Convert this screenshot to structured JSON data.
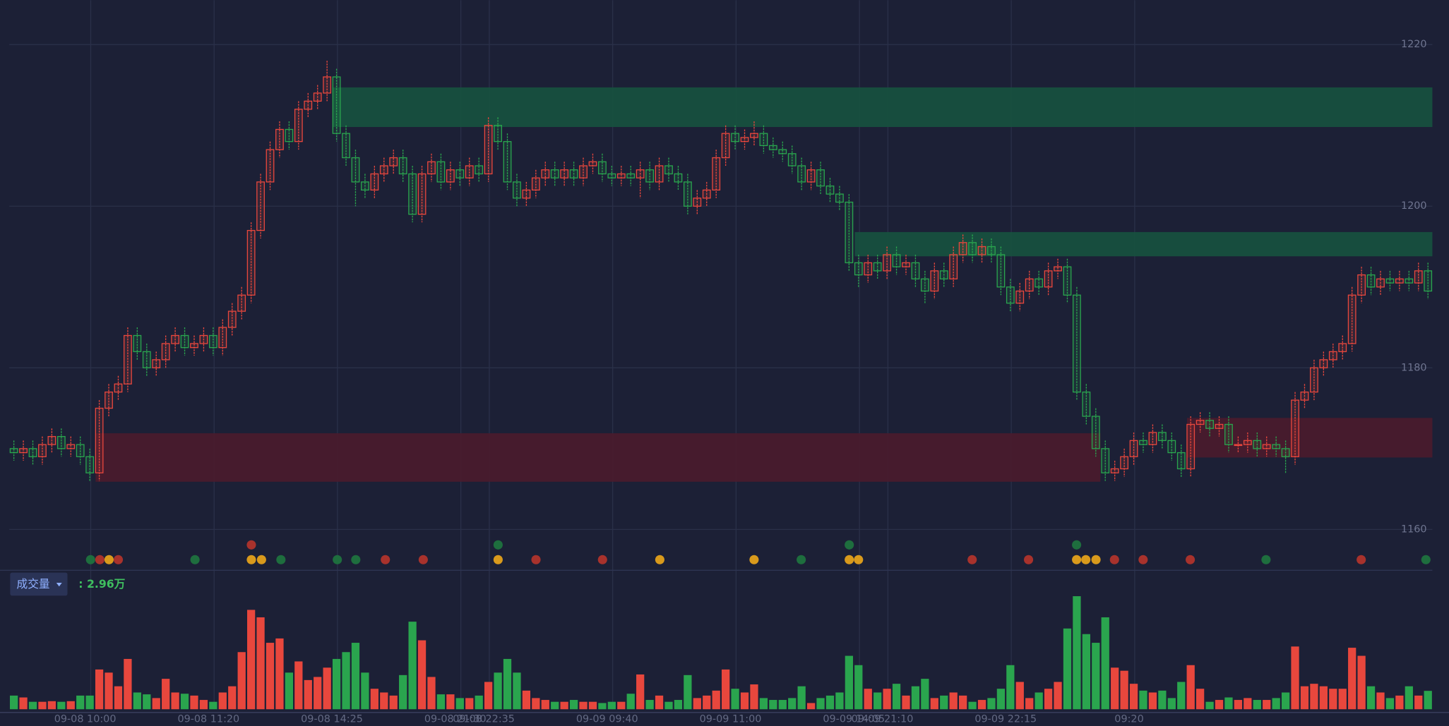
{
  "chart_data": {
    "type": "candlestick",
    "ylim": [
      1155,
      1225.5
    ],
    "yticks": [
      1160,
      1180,
      1200,
      1220
    ],
    "grid": true,
    "up_color": "#e8473d",
    "down_color": "#2aa54e",
    "categories": [
      null,
      null,
      null,
      null,
      null,
      null,
      null,
      null,
      "09-08 10:00",
      null,
      null,
      null,
      null,
      null,
      null,
      null,
      null,
      null,
      null,
      null,
      null,
      "09-08 11:20",
      null,
      null,
      null,
      null,
      null,
      null,
      null,
      null,
      null,
      null,
      null,
      null,
      "09-08 14:25",
      null,
      null,
      null,
      null,
      null,
      null,
      null,
      null,
      null,
      null,
      null,
      null,
      "09-08 21:30",
      null,
      null,
      "09-08 22:35",
      null,
      null,
      null,
      null,
      null,
      null,
      null,
      null,
      null,
      null,
      null,
      null,
      "09-09 09:40",
      null,
      null,
      null,
      null,
      null,
      null,
      null,
      null,
      null,
      null,
      null,
      null,
      "09-09 11:00",
      null,
      null,
      null,
      null,
      null,
      null,
      null,
      null,
      null,
      null,
      null,
      null,
      "09-09 14:05",
      null,
      null,
      "09-09 21:10",
      null,
      null,
      null,
      null,
      null,
      null,
      null,
      null,
      null,
      null,
      null,
      null,
      "09-09 22:15",
      null,
      null,
      null,
      null,
      null,
      null,
      null,
      null,
      null,
      null,
      null,
      null,
      "09:20",
      null,
      null,
      null,
      null,
      null,
      null,
      null,
      null,
      null,
      null,
      null,
      null,
      null,
      null,
      null,
      null,
      null,
      null,
      null,
      null,
      null,
      null,
      null,
      null,
      null,
      null,
      null,
      null,
      null,
      null,
      null
    ],
    "candles": [
      [
        1170,
        1171,
        1168.5,
        1169.5
      ],
      [
        1169.5,
        1171,
        1168.5,
        1170
      ],
      [
        1170,
        1171,
        1168,
        1169
      ],
      [
        1169,
        1171.5,
        1168,
        1170.5
      ],
      [
        1170.5,
        1172.5,
        1169.5,
        1171.5
      ],
      [
        1171.5,
        1172.5,
        1169,
        1170
      ],
      [
        1170,
        1171.5,
        1169,
        1170.5
      ],
      [
        1170.5,
        1171.5,
        1168,
        1169
      ],
      [
        1169,
        1170,
        1166,
        1167
      ],
      [
        1167,
        1176,
        1166,
        1175
      ],
      [
        1175,
        1178,
        1174,
        1177
      ],
      [
        1177,
        1179,
        1176,
        1178
      ],
      [
        1178,
        1185,
        1177,
        1184
      ],
      [
        1184,
        1185,
        1181,
        1182
      ],
      [
        1182,
        1183,
        1179,
        1180
      ],
      [
        1180,
        1182,
        1179,
        1181
      ],
      [
        1181,
        1184,
        1180,
        1183
      ],
      [
        1183,
        1185,
        1182,
        1184
      ],
      [
        1184,
        1185,
        1181.5,
        1182.5
      ],
      [
        1182.5,
        1184,
        1181.5,
        1183
      ],
      [
        1183,
        1185,
        1182,
        1184
      ],
      [
        1184,
        1185,
        1181.5,
        1182.5
      ],
      [
        1182.5,
        1186,
        1181.5,
        1185
      ],
      [
        1185,
        1188,
        1184,
        1187
      ],
      [
        1187,
        1190,
        1186,
        1189
      ],
      [
        1189,
        1198,
        1188,
        1197
      ],
      [
        1197,
        1204,
        1196,
        1203
      ],
      [
        1203,
        1208,
        1202,
        1207
      ],
      [
        1207,
        1210.5,
        1206,
        1209.5
      ],
      [
        1209.5,
        1210.5,
        1207,
        1208
      ],
      [
        1208,
        1213,
        1207,
        1212
      ],
      [
        1212,
        1214,
        1211,
        1213
      ],
      [
        1213,
        1215,
        1212,
        1214
      ],
      [
        1214,
        1218,
        1213,
        1216
      ],
      [
        1216,
        1217,
        1208,
        1209
      ],
      [
        1209,
        1210,
        1205,
        1206
      ],
      [
        1206,
        1207,
        1200,
        1203
      ],
      [
        1203,
        1204,
        1201,
        1202
      ],
      [
        1202,
        1205,
        1201,
        1204
      ],
      [
        1204,
        1206,
        1203,
        1205
      ],
      [
        1205,
        1207,
        1204,
        1206
      ],
      [
        1206,
        1207,
        1203,
        1204
      ],
      [
        1204,
        1205,
        1198,
        1199
      ],
      [
        1199,
        1205,
        1198,
        1204
      ],
      [
        1204,
        1206.5,
        1203,
        1205.5
      ],
      [
        1205.5,
        1206.5,
        1202,
        1203
      ],
      [
        1203,
        1205.5,
        1202,
        1204.5
      ],
      [
        1204.5,
        1205.5,
        1202.5,
        1203.5
      ],
      [
        1203.5,
        1206,
        1202.5,
        1205
      ],
      [
        1205,
        1206,
        1203,
        1204
      ],
      [
        1204,
        1211,
        1203,
        1210
      ],
      [
        1210,
        1211,
        1207,
        1208
      ],
      [
        1208,
        1209,
        1202,
        1203
      ],
      [
        1203,
        1204,
        1200,
        1201
      ],
      [
        1201,
        1203,
        1200,
        1202
      ],
      [
        1202,
        1204.5,
        1201,
        1203.5
      ],
      [
        1203.5,
        1205.5,
        1202.5,
        1204.5
      ],
      [
        1204.5,
        1205.5,
        1202.5,
        1203.5
      ],
      [
        1203.5,
        1205.5,
        1202.5,
        1204.5
      ],
      [
        1204.5,
        1205.5,
        1202.5,
        1203.5
      ],
      [
        1203.5,
        1206,
        1202.5,
        1205
      ],
      [
        1205,
        1206.5,
        1204,
        1205.5
      ],
      [
        1205.5,
        1206.5,
        1203,
        1204
      ],
      [
        1204,
        1205,
        1202.5,
        1203.5
      ],
      [
        1203.5,
        1205,
        1202.5,
        1204
      ],
      [
        1204,
        1205,
        1202.5,
        1203.5
      ],
      [
        1203.5,
        1205.5,
        1201,
        1204.5
      ],
      [
        1204.5,
        1205.5,
        1202,
        1203
      ],
      [
        1203,
        1206,
        1202,
        1205
      ],
      [
        1205,
        1206,
        1203,
        1204
      ],
      [
        1204,
        1205,
        1202,
        1203
      ],
      [
        1203,
        1204,
        1199,
        1200
      ],
      [
        1200,
        1202,
        1199,
        1201
      ],
      [
        1201,
        1203,
        1200,
        1202
      ],
      [
        1202,
        1207,
        1201,
        1206
      ],
      [
        1206,
        1210,
        1205,
        1209
      ],
      [
        1209,
        1210,
        1207,
        1208
      ],
      [
        1208,
        1209.5,
        1207,
        1208.5
      ],
      [
        1208.5,
        1210.5,
        1207.5,
        1209
      ],
      [
        1209,
        1210,
        1206.5,
        1207.5
      ],
      [
        1207.5,
        1208.5,
        1206,
        1207
      ],
      [
        1207,
        1208,
        1205.5,
        1206.5
      ],
      [
        1206.5,
        1207.5,
        1204,
        1205
      ],
      [
        1205,
        1206,
        1202,
        1203
      ],
      [
        1203,
        1205.5,
        1202,
        1204.5
      ],
      [
        1204.5,
        1205.5,
        1201.5,
        1202.5
      ],
      [
        1202.5,
        1203.5,
        1200.5,
        1201.5
      ],
      [
        1201.5,
        1202.5,
        1199.5,
        1200.5
      ],
      [
        1200.5,
        1201.5,
        1192,
        1193
      ],
      [
        1193,
        1194,
        1190,
        1191.5
      ],
      [
        1191.5,
        1194,
        1190.5,
        1193
      ],
      [
        1193,
        1194,
        1191,
        1192
      ],
      [
        1192,
        1195,
        1191,
        1194
      ],
      [
        1194,
        1195,
        1191.5,
        1192.5
      ],
      [
        1192.5,
        1194,
        1191.5,
        1193
      ],
      [
        1193,
        1194,
        1190,
        1191
      ],
      [
        1191,
        1192,
        1188,
        1189.5
      ],
      [
        1189.5,
        1193,
        1188.5,
        1192
      ],
      [
        1192,
        1193,
        1190,
        1191
      ],
      [
        1191,
        1195,
        1190,
        1194
      ],
      [
        1194,
        1196.5,
        1193,
        1195.5
      ],
      [
        1195.5,
        1196.5,
        1193,
        1194
      ],
      [
        1194,
        1196,
        1193,
        1195
      ],
      [
        1195,
        1196,
        1193,
        1194
      ],
      [
        1194,
        1195,
        1189,
        1190
      ],
      [
        1190,
        1191,
        1187,
        1188
      ],
      [
        1188,
        1190.5,
        1187,
        1189.5
      ],
      [
        1189.5,
        1192,
        1188.5,
        1191
      ],
      [
        1191,
        1192,
        1189,
        1190
      ],
      [
        1190,
        1193,
        1189,
        1192
      ],
      [
        1192,
        1193.5,
        1191,
        1192.5
      ],
      [
        1192.5,
        1193.5,
        1188,
        1189
      ],
      [
        1189,
        1190,
        1176,
        1177
      ],
      [
        1177,
        1178,
        1173,
        1174
      ],
      [
        1174,
        1175,
        1169,
        1170
      ],
      [
        1170,
        1171,
        1166,
        1167
      ],
      [
        1167,
        1168.5,
        1166,
        1167.5
      ],
      [
        1167.5,
        1170,
        1166.5,
        1169
      ],
      [
        1169,
        1172,
        1168,
        1171
      ],
      [
        1171,
        1172,
        1169.5,
        1170.5
      ],
      [
        1170.5,
        1173,
        1169.5,
        1172
      ],
      [
        1172,
        1173,
        1170,
        1171
      ],
      [
        1171,
        1172,
        1168.5,
        1169.5
      ],
      [
        1169.5,
        1170.5,
        1166.5,
        1167.5
      ],
      [
        1167.5,
        1174,
        1166.5,
        1173
      ],
      [
        1173,
        1174.5,
        1172,
        1173.5
      ],
      [
        1173.5,
        1174.5,
        1171.5,
        1172.5
      ],
      [
        1172.5,
        1174,
        1171.5,
        1173
      ],
      [
        1173,
        1174,
        1169.5,
        1170.5
      ],
      [
        1170.5,
        1171.5,
        1169.5,
        1170.5
      ],
      [
        1170.5,
        1172,
        1169.5,
        1171
      ],
      [
        1171,
        1172,
        1169,
        1170
      ],
      [
        1170,
        1171.5,
        1169,
        1170.5
      ],
      [
        1170.5,
        1171.5,
        1169,
        1170
      ],
      [
        1170,
        1171,
        1167,
        1169
      ],
      [
        1169,
        1177,
        1168,
        1176
      ],
      [
        1176,
        1178,
        1175,
        1177
      ],
      [
        1177,
        1181,
        1176,
        1180
      ],
      [
        1180,
        1182,
        1179,
        1181
      ],
      [
        1181,
        1183,
        1180,
        1182
      ],
      [
        1182,
        1184,
        1181,
        1183
      ],
      [
        1183,
        1190,
        1182,
        1189
      ],
      [
        1189,
        1192.5,
        1188,
        1191.5
      ],
      [
        1191.5,
        1192.5,
        1189,
        1190
      ],
      [
        1190,
        1192,
        1189,
        1191
      ],
      [
        1191,
        1192,
        1189.5,
        1190.5
      ],
      [
        1190.5,
        1192,
        1189.5,
        1191
      ],
      [
        1191,
        1192,
        1189.5,
        1190.5
      ],
      [
        1190.5,
        1193,
        1189.5,
        1192
      ],
      [
        1192,
        1193,
        1188.5,
        1189.5
      ]
    ],
    "zones": [
      {
        "low": 1209.8,
        "high": 1214.7,
        "start": 34,
        "end": 149,
        "color": "#17503f"
      },
      {
        "low": 1193.8,
        "high": 1196.8,
        "start": 89,
        "end": 149,
        "color": "#17503f"
      },
      {
        "low": 1165.9,
        "high": 1171.9,
        "start": 9,
        "end": 114,
        "color": "#491b2d"
      },
      {
        "low": 1168.9,
        "high": 1173.8,
        "start": 124,
        "end": 149,
        "color": "#491b2d"
      }
    ],
    "volume_title": "成交量",
    "volume_label": ": 2.96万",
    "volume_ylim": [
      0,
      22
    ],
    "volume": [
      2.2,
      1.9,
      1.2,
      1.2,
      1.3,
      1.2,
      1.3,
      2.2,
      2.2,
      6.4,
      5.9,
      3.7,
      8.1,
      2.7,
      2.4,
      1.8,
      4.9,
      2.7,
      2.5,
      2.2,
      1.5,
      1.2,
      2.7,
      3.7,
      9.2,
      16,
      14.8,
      10.7,
      11.4,
      5.9,
      7.7,
      4.7,
      5.2,
      6.7,
      8.1,
      9.2,
      10.7,
      5.9,
      3.3,
      2.7,
      2.2,
      5.5,
      14.1,
      11.1,
      5.2,
      2.4,
      2.4,
      1.8,
      1.8,
      2.2,
      4.4,
      5.9,
      8.1,
      5.9,
      3,
      1.8,
      1.5,
      1.2,
      1.2,
      1.5,
      1.2,
      1.2,
      1,
      1.2,
      1.2,
      2.5,
      5.6,
      1.5,
      2.2,
      1.2,
      1.5,
      5.5,
      1.8,
      2.2,
      3,
      6.4,
      3.3,
      2.7,
      4,
      1.8,
      1.5,
      1.5,
      1.8,
      3.7,
      1,
      1.8,
      2.2,
      2.7,
      8.6,
      7.1,
      3.3,
      2.7,
      3.3,
      4.1,
      2.2,
      3.7,
      4.9,
      1.8,
      2.2,
      2.7,
      2.2,
      1.2,
      1.5,
      1.8,
      3.3,
      7.1,
      4.4,
      1.8,
      2.7,
      3.3,
      4.4,
      13,
      18.2,
      12.1,
      10.7,
      14.8,
      6.7,
      6.2,
      4.1,
      3,
      2.7,
      3,
      1.8,
      4.4,
      7.1,
      3.3,
      1.2,
      1.5,
      1.9,
      1.5,
      1.8,
      1.5,
      1.5,
      1.8,
      2.7,
      10.1,
      3.7,
      4.1,
      3.7,
      3.3,
      3.3,
      9.9,
      8.6,
      3.7,
      2.7,
      1.8,
      2.2,
      3.7,
      2.2,
      2.96
    ]
  }
}
